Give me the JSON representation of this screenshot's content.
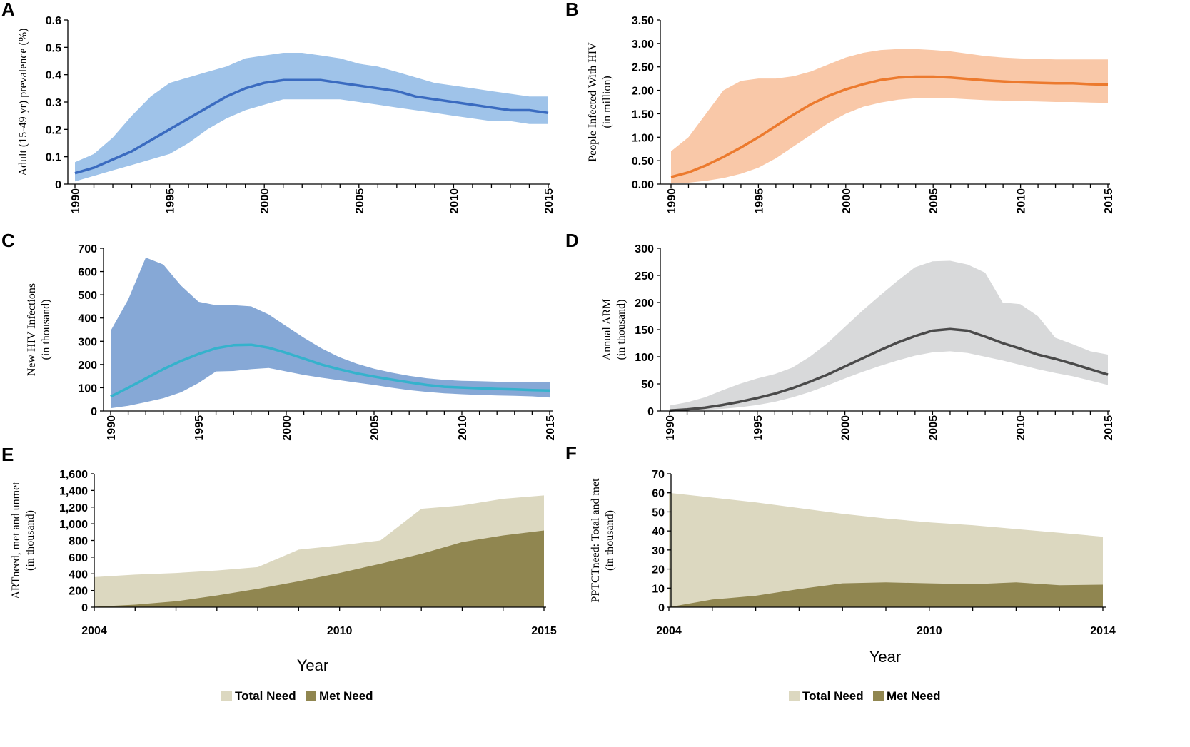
{
  "chart_data": [
    {
      "panel": "A",
      "type": "area",
      "ylabel": "Adult (15-49 yr) prevalence (%)",
      "ylim": [
        0,
        0.6
      ],
      "yticks": [
        "0",
        "0.1",
        "0.2",
        "0.3",
        "0.4",
        "0.5",
        "0.6"
      ],
      "xlim": [
        1990,
        2015
      ],
      "xticks": [
        "1990",
        "1995",
        "2000",
        "2005",
        "2010",
        "2015"
      ],
      "colors": {
        "band": "#9fc3e9",
        "line": "#3a6bc0"
      },
      "x": [
        1990,
        1991,
        1992,
        1993,
        1994,
        1995,
        1996,
        1997,
        1998,
        1999,
        2000,
        2001,
        2002,
        2003,
        2004,
        2005,
        2006,
        2007,
        2008,
        2009,
        2010,
        2011,
        2012,
        2013,
        2014,
        2015
      ],
      "series": [
        {
          "values": [
            0.04,
            0.06,
            0.09,
            0.12,
            0.16,
            0.2,
            0.24,
            0.28,
            0.32,
            0.35,
            0.37,
            0.38,
            0.38,
            0.38,
            0.37,
            0.36,
            0.35,
            0.34,
            0.32,
            0.31,
            0.3,
            0.29,
            0.28,
            0.27,
            0.27,
            0.26
          ]
        },
        {
          "role": "upper",
          "values": [
            0.08,
            0.11,
            0.17,
            0.25,
            0.32,
            0.37,
            0.39,
            0.41,
            0.43,
            0.46,
            0.47,
            0.48,
            0.48,
            0.47,
            0.46,
            0.44,
            0.43,
            0.41,
            0.39,
            0.37,
            0.36,
            0.35,
            0.34,
            0.33,
            0.32,
            0.32
          ]
        },
        {
          "role": "lower",
          "values": [
            0.01,
            0.03,
            0.05,
            0.07,
            0.09,
            0.11,
            0.15,
            0.2,
            0.24,
            0.27,
            0.29,
            0.31,
            0.31,
            0.31,
            0.31,
            0.3,
            0.29,
            0.28,
            0.27,
            0.26,
            0.25,
            0.24,
            0.23,
            0.23,
            0.22,
            0.22
          ]
        }
      ]
    },
    {
      "panel": "B",
      "type": "area",
      "ylabel": "People Infected With HIV (in million)",
      "ylim": [
        0,
        3.5
      ],
      "yticks": [
        "0.00",
        "0.50",
        "1.00",
        "1.50",
        "2.00",
        "2.50",
        "3.00",
        "3.50"
      ],
      "xlim": [
        1990,
        2015
      ],
      "xticks": [
        "1990",
        "1995",
        "2000",
        "2005",
        "2010",
        "2015"
      ],
      "colors": {
        "band": "#f9c8a8",
        "line": "#ec7a2e"
      },
      "x": [
        1990,
        1991,
        1992,
        1993,
        1994,
        1995,
        1996,
        1997,
        1998,
        1999,
        2000,
        2001,
        2002,
        2003,
        2004,
        2005,
        2006,
        2007,
        2008,
        2009,
        2010,
        2011,
        2012,
        2013,
        2014,
        2015
      ],
      "series": [
        {
          "values": [
            0.15,
            0.25,
            0.4,
            0.58,
            0.78,
            1.0,
            1.24,
            1.48,
            1.7,
            1.88,
            2.02,
            2.13,
            2.22,
            2.27,
            2.29,
            2.29,
            2.27,
            2.24,
            2.21,
            2.19,
            2.17,
            2.16,
            2.15,
            2.15,
            2.13,
            2.12
          ]
        },
        {
          "role": "upper",
          "values": [
            0.7,
            1.0,
            1.5,
            2.0,
            2.2,
            2.25,
            2.25,
            2.3,
            2.4,
            2.55,
            2.7,
            2.8,
            2.86,
            2.88,
            2.88,
            2.86,
            2.83,
            2.78,
            2.73,
            2.7,
            2.68,
            2.67,
            2.66,
            2.66,
            2.66,
            2.66
          ]
        },
        {
          "role": "lower",
          "values": [
            0.01,
            0.03,
            0.07,
            0.13,
            0.22,
            0.35,
            0.55,
            0.8,
            1.05,
            1.3,
            1.5,
            1.65,
            1.74,
            1.8,
            1.83,
            1.84,
            1.83,
            1.81,
            1.79,
            1.78,
            1.77,
            1.76,
            1.75,
            1.75,
            1.74,
            1.73
          ]
        }
      ]
    },
    {
      "panel": "C",
      "type": "area",
      "ylabel": "New HIV Infections (in thousand)",
      "ylim": [
        0,
        700
      ],
      "yticks": [
        "0",
        "100",
        "200",
        "300",
        "400",
        "500",
        "600",
        "700"
      ],
      "xlim": [
        1989.5,
        2015
      ],
      "xticks": [
        "1990",
        "1995",
        "2000",
        "2005",
        "2010",
        "2015"
      ],
      "colors": {
        "band": "#86a8d6",
        "line": "#35b2cc"
      },
      "x": [
        1990,
        1991,
        1992,
        1993,
        1994,
        1995,
        1996,
        1997,
        1998,
        1999,
        2000,
        2001,
        2002,
        2003,
        2004,
        2005,
        2006,
        2007,
        2008,
        2009,
        2010,
        2011,
        2012,
        2013,
        2014,
        2015
      ],
      "series": [
        {
          "values": [
            62,
            100,
            140,
            180,
            215,
            245,
            270,
            283,
            285,
            272,
            250,
            225,
            200,
            180,
            162,
            148,
            135,
            123,
            112,
            104,
            101,
            98,
            95,
            93,
            90,
            88
          ]
        },
        {
          "role": "upper",
          "values": [
            345,
            480,
            660,
            630,
            540,
            470,
            455,
            455,
            450,
            415,
            365,
            315,
            270,
            232,
            204,
            182,
            165,
            151,
            141,
            134,
            130,
            128,
            126,
            125,
            124,
            123
          ]
        },
        {
          "role": "lower",
          "values": [
            12,
            22,
            38,
            55,
            80,
            120,
            170,
            172,
            180,
            185,
            170,
            155,
            143,
            133,
            122,
            112,
            100,
            90,
            82,
            76,
            72,
            69,
            67,
            65,
            63,
            58
          ]
        }
      ]
    },
    {
      "panel": "D",
      "type": "area",
      "ylabel": "Annual ARM (in thousand)",
      "ylim": [
        0,
        300
      ],
      "yticks": [
        "0",
        "50",
        "100",
        "150",
        "200",
        "250",
        "300"
      ],
      "xlim": [
        1990,
        2015
      ],
      "xticks": [
        "1990",
        "1995",
        "2000",
        "2005",
        "2010",
        "2015"
      ],
      "colors": {
        "band": "#d8d9da",
        "line": "#4a4a4a"
      },
      "x": [
        1990,
        1991,
        1992,
        1993,
        1994,
        1995,
        1996,
        1997,
        1998,
        1999,
        2000,
        2001,
        2002,
        2003,
        2004,
        2005,
        2006,
        2007,
        2008,
        2009,
        2010,
        2011,
        2012,
        2013,
        2014,
        2015
      ],
      "series": [
        {
          "values": [
            1,
            3,
            6,
            11,
            17,
            24,
            32,
            42,
            54,
            67,
            82,
            97,
            112,
            126,
            138,
            148,
            151,
            148,
            137,
            125,
            115,
            104,
            96,
            87,
            77,
            67
          ]
        },
        {
          "role": "upper",
          "values": [
            10,
            16,
            25,
            38,
            50,
            60,
            68,
            80,
            100,
            125,
            155,
            185,
            213,
            240,
            265,
            276,
            277,
            270,
            255,
            200,
            197,
            175,
            135,
            123,
            110,
            104
          ]
        },
        {
          "role": "lower",
          "values": [
            0,
            1,
            2,
            4,
            7,
            11,
            17,
            25,
            35,
            47,
            60,
            72,
            83,
            93,
            102,
            108,
            110,
            107,
            100,
            93,
            85,
            77,
            70,
            64,
            56,
            48
          ]
        }
      ]
    },
    {
      "panel": "E",
      "type": "area",
      "ylabel": "ARTneed, met and unmet (in thousand)",
      "xlabel": "Year",
      "ylim": [
        0,
        1600
      ],
      "yticks": [
        "0",
        "200",
        "400",
        "600",
        "800",
        "1,000",
        "1,200",
        "1,400",
        "1,600"
      ],
      "xlim": [
        2004,
        2015
      ],
      "xticks": [
        "2004",
        "2010",
        "2015"
      ],
      "x": [
        2004,
        2005,
        2006,
        2007,
        2008,
        2009,
        2010,
        2011,
        2012,
        2013,
        2014,
        2015
      ],
      "series": [
        {
          "name": "Total Need",
          "color": "#dcd8c0",
          "values": [
            360,
            390,
            410,
            440,
            480,
            690,
            740,
            800,
            1180,
            1220,
            1300,
            1340
          ]
        },
        {
          "name": "Met Need",
          "color": "#908650",
          "values": [
            5,
            30,
            70,
            140,
            220,
            310,
            410,
            520,
            640,
            780,
            860,
            920
          ]
        }
      ],
      "legend": "bottom"
    },
    {
      "panel": "F",
      "type": "area",
      "ylabel": "PPTCTneed: Total and met (in thousand)",
      "xlabel": "Year",
      "ylim": [
        0,
        70
      ],
      "yticks": [
        "0",
        "10",
        "20",
        "30",
        "40",
        "50",
        "60",
        "70"
      ],
      "xlim": [
        2004,
        2014
      ],
      "xticks": [
        "2004",
        "2010",
        "2014"
      ],
      "x": [
        2004,
        2005,
        2006,
        2007,
        2008,
        2009,
        2010,
        2011,
        2012,
        2013,
        2014
      ],
      "series": [
        {
          "name": "Total Need",
          "color": "#dcd8c0",
          "values": [
            60,
            57.5,
            55,
            52,
            49,
            46.5,
            44.5,
            43,
            41,
            39,
            37
          ]
        },
        {
          "name": "Met Need",
          "color": "#908650",
          "values": [
            0,
            4,
            6,
            9.5,
            12.5,
            13,
            12.5,
            12,
            13,
            11.5,
            11.8
          ]
        }
      ],
      "legend": "bottom"
    }
  ]
}
